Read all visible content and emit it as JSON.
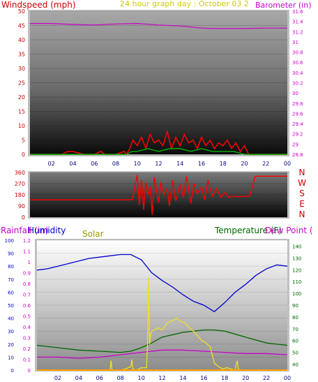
{
  "header": {
    "title": "24 hour graph day : October 03 2",
    "windspeed_label": "Windspeed (mph)",
    "barometer_label": "Barometer (in)"
  },
  "colors": {
    "windspeed": "#cc0000",
    "barometer": "#cc00cc",
    "title": "#cccc00",
    "gust": "#ff0000",
    "wind_avg": "#00aa00",
    "wind_dir": "#ff0000",
    "humidity": "#0000cc",
    "solar": "#f0e020",
    "temperature": "#006600",
    "dewpoint": "#cc00cc",
    "rainfall": "#ffa000",
    "compass": "#cc0000"
  },
  "legend": {
    "rainfall": "Rainfall (in)",
    "humidity": "Humidity",
    "solar": "Solar",
    "temperature": "Temperature (F)",
    "dewpoint": "Dew Point ("
  },
  "compass": [
    "N",
    "W",
    "S",
    "E",
    "N"
  ],
  "x_ticks": [
    "02",
    "04",
    "06",
    "08",
    "10",
    "12",
    "14",
    "16",
    "18",
    "20",
    "22",
    "00"
  ],
  "chart_data": [
    {
      "type": "line",
      "name": "wind-baro",
      "left_axis": {
        "label": "Windspeed (mph)",
        "ylim": [
          0,
          50
        ],
        "ticks": [
          "0",
          "5",
          "10",
          "15",
          "20",
          "25",
          "30",
          "35",
          "40",
          "45",
          "50"
        ]
      },
      "right_axis": {
        "label": "Barometer (in)",
        "ylim": [
          28.8,
          31.6
        ],
        "ticks": [
          "28.8",
          "29",
          "29.2",
          "29.4",
          "29.6",
          "29.8",
          "30",
          "30.2",
          "30.4",
          "30.6",
          "30.8",
          "31",
          "31.2",
          "31.4",
          "31.6"
        ]
      },
      "x_ticks": [
        "02",
        "04",
        "06",
        "08",
        "10",
        "12",
        "14",
        "16",
        "18",
        "20",
        "22",
        "00"
      ],
      "series": [
        {
          "name": "Barometer",
          "axis": "right",
          "x": [
            0,
            2,
            4,
            6,
            8,
            10,
            12,
            14,
            15,
            16,
            17,
            18,
            20,
            22,
            24
          ],
          "values": [
            31.36,
            31.36,
            31.34,
            31.33,
            31.35,
            31.36,
            31.33,
            31.31,
            31.29,
            31.27,
            31.26,
            31.26,
            31.26,
            31.27,
            31.27
          ]
        },
        {
          "name": "Wind Gust",
          "axis": "left",
          "x": [
            0,
            1,
            2,
            3,
            3.5,
            4,
            5,
            6,
            6.6,
            7,
            8,
            8.8,
            9,
            9.3,
            9.6,
            10,
            10.4,
            10.8,
            11.2,
            11.6,
            12,
            12.4,
            12.8,
            13.2,
            13.6,
            14,
            14.4,
            14.8,
            15.2,
            15.6,
            16,
            16.4,
            16.8,
            17.2,
            17.6,
            18,
            18.4,
            18.8,
            19.2,
            19.6,
            20,
            20.4,
            21,
            22,
            23,
            24
          ],
          "values": [
            0,
            0,
            0,
            0,
            1,
            1,
            0,
            0,
            1,
            0,
            0,
            1,
            0,
            2,
            5,
            3,
            6,
            2,
            7,
            4,
            5,
            3,
            8,
            2,
            6,
            3,
            7,
            4,
            5,
            2,
            6,
            3,
            5,
            2,
            4,
            3,
            5,
            2,
            4,
            1,
            3,
            0,
            0,
            0,
            0,
            0
          ]
        },
        {
          "name": "Wind Average",
          "axis": "left",
          "x": [
            0,
            9,
            9.5,
            10,
            11,
            12,
            13,
            14,
            15,
            16,
            17,
            18,
            19,
            20,
            20.5,
            24
          ],
          "values": [
            0,
            0,
            1,
            1,
            2,
            1,
            2,
            2,
            1,
            2,
            1,
            1,
            1,
            0,
            0,
            0
          ]
        }
      ]
    },
    {
      "type": "scatter",
      "name": "wind-direction",
      "ylim": [
        0,
        360
      ],
      "yticks": [
        "0",
        "90",
        "180",
        "270",
        "360"
      ],
      "series": [
        {
          "name": "Wind Direction",
          "x": [
            0,
            4,
            8,
            9.2,
            9.5,
            9.6,
            10,
            10.2,
            10.4,
            10.6,
            10.8,
            11,
            11.2,
            11.4,
            11.6,
            12,
            12.2,
            12.5,
            12.8,
            13,
            13.3,
            13.6,
            14,
            14.3,
            14.6,
            15,
            15.3,
            15.6,
            16,
            16.3,
            16.6,
            17,
            17.4,
            17.8,
            18.2,
            18.5,
            19,
            19.5,
            20,
            20.5,
            21,
            22,
            23,
            24
          ],
          "values": [
            140,
            140,
            140,
            140,
            140,
            160,
            340,
            100,
            300,
            60,
            280,
            180,
            250,
            20,
            320,
            120,
            280,
            180,
            230,
            90,
            300,
            130,
            260,
            160,
            330,
            110,
            270,
            190,
            240,
            140,
            300,
            170,
            230,
            160,
            200,
            160,
            170,
            165,
            170,
            170,
            330,
            330,
            330,
            330
          ]
        }
      ]
    },
    {
      "type": "line",
      "name": "temperature-humidity",
      "rain_axis": {
        "label": "Rainfall (in)",
        "ylim": [
          0,
          1.2
        ],
        "ticks": [
          "0",
          "0.1",
          "0.2",
          "0.3",
          "0.4",
          "0.5",
          "0.6",
          "0.7",
          "0.8",
          "0.9",
          "1",
          "1.1",
          "1.2"
        ]
      },
      "humidity_axis": {
        "label": "Humidity",
        "ylim": [
          0,
          100
        ],
        "ticks": [
          "0",
          "10",
          "20",
          "30",
          "40",
          "50",
          "60",
          "70",
          "80",
          "90",
          "100"
        ]
      },
      "temperature_axis": {
        "label": "Temperature (F)",
        "ylim": [
          35,
          145
        ],
        "ticks": [
          "40",
          "50",
          "60",
          "70",
          "80",
          "90",
          "100",
          "110",
          "120",
          "130",
          "140"
        ]
      },
      "x_ticks": [
        "02",
        "04",
        "06",
        "08",
        "10",
        "12",
        "14",
        "16",
        "18",
        "20",
        "22",
        "00"
      ],
      "series": [
        {
          "name": "Humidity",
          "axis": "humidity",
          "x": [
            0,
            1,
            2,
            3,
            4,
            5,
            6,
            7,
            8,
            9,
            10,
            11,
            12,
            13,
            14,
            15,
            16,
            17,
            18,
            19,
            20,
            21,
            22,
            23,
            24
          ],
          "values": [
            77,
            78,
            80,
            82,
            84,
            86,
            87,
            88,
            89,
            89,
            85,
            75,
            69,
            64,
            58,
            53,
            50,
            45,
            52,
            60,
            66,
            73,
            78,
            81,
            80
          ]
        },
        {
          "name": "Temperature",
          "axis": "temperature",
          "x": [
            0,
            2,
            4,
            6,
            8,
            9,
            10,
            11,
            12,
            14,
            16,
            17,
            18,
            20,
            22,
            24
          ],
          "values": [
            56,
            54,
            52,
            51,
            50,
            51,
            54,
            58,
            63,
            67,
            69,
            69,
            68,
            63,
            58,
            56
          ]
        },
        {
          "name": "Dew Point",
          "axis": "temperature",
          "x": [
            0,
            2,
            4,
            6,
            8,
            10,
            12,
            14,
            16,
            18,
            20,
            22,
            24
          ],
          "values": [
            46,
            46,
            45,
            46,
            48,
            50,
            52,
            52,
            51,
            50,
            49,
            49,
            48
          ]
        },
        {
          "name": "Solar",
          "axis": "temperature",
          "x": [
            0,
            7,
            7.1,
            7.2,
            8,
            8.5,
            9,
            9.1,
            9.2,
            9.5,
            10,
            10.5,
            10.6,
            10.7,
            10.8,
            10.9,
            11,
            11.3,
            11.6,
            12,
            12.5,
            13,
            13.4,
            13.8,
            14.2,
            14.6,
            15,
            15.4,
            15.8,
            16.2,
            16.6,
            16.8,
            17,
            17.4,
            17.8,
            18.2,
            18.6,
            19,
            19.1,
            19.2,
            19.3,
            19.5,
            24
          ],
          "values": [
            35,
            35,
            43,
            35,
            35,
            36,
            38,
            44,
            36,
            35,
            37,
            37,
            57,
            114,
            57,
            65,
            68,
            69,
            71,
            69,
            75,
            77,
            79,
            76,
            75,
            71,
            68,
            64,
            60,
            58,
            55,
            48,
            41,
            38,
            36,
            37,
            36,
            35,
            40,
            43,
            36,
            35,
            35
          ]
        },
        {
          "name": "Rainfall",
          "axis": "rain",
          "x": [
            0,
            24
          ],
          "values": [
            0,
            0
          ]
        }
      ]
    }
  ]
}
